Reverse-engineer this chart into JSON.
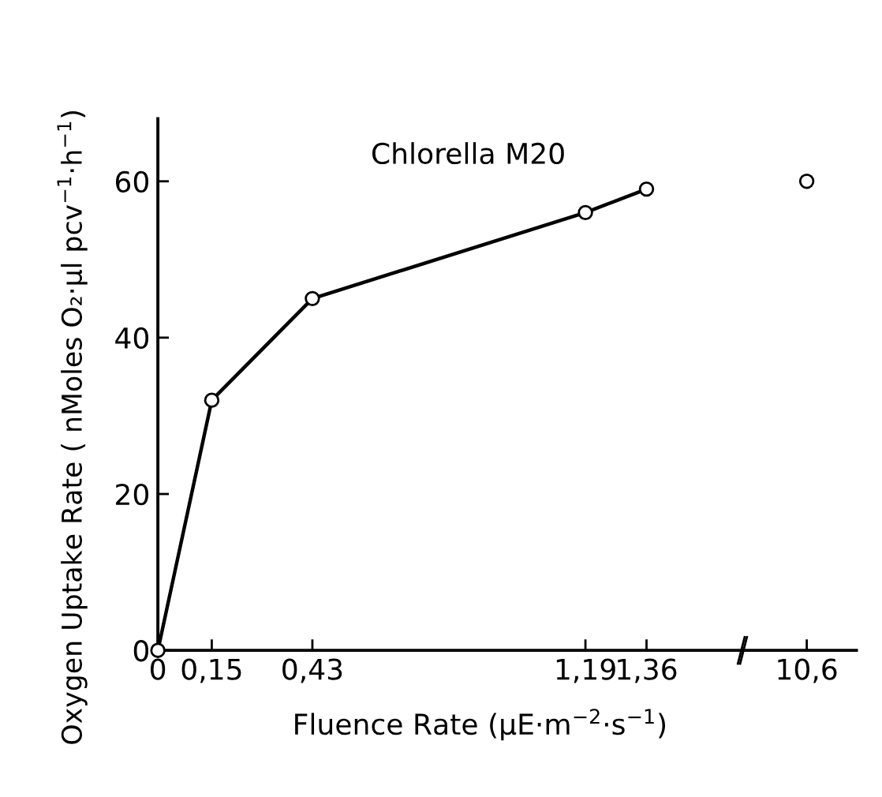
{
  "chart_data": [
    {
      "type": "line",
      "title": "Chlorella M20",
      "xlabel": "Fluence Rate (µE·m$^{−2}$·s$^{−1}$)",
      "ylabel": "Oxygen Uptake Rate ( nMoles O₂·µl pcv$^{−1}$·h$^{−1}$)",
      "x": [
        0,
        0.15,
        0.43,
        1.19,
        1.36
      ],
      "series": [
        {
          "color": "#000000",
          "values": [
            0,
            32,
            45,
            56,
            59
          ]
        }
      ],
      "xlim": [
        0,
        1.63
      ],
      "xticks": [
        0,
        {
          "value": 0.15,
          "label": "0,15"
        },
        {
          "value": 0.43,
          "label": "0,43"
        },
        {
          "value": 1.19,
          "label": "1,19"
        },
        {
          "value": 1.36,
          "label": "1,36"
        }
      ],
      "ylim": [
        0,
        68
      ],
      "yticks": [
        0,
        20,
        40,
        60
      ],
      "grid": false,
      "legend": false,
      "marker": "circle",
      "line_style": "solid"
    },
    {
      "type": "line",
      "categories": [
        "10,6"
      ],
      "series": [
        {
          "color": "#000000",
          "values": [
            60
          ]
        }
      ],
      "ylim": [
        0,
        68
      ],
      "tick_labels": "x",
      "grid": false,
      "legend": false,
      "marker": "circle",
      "line_style": "solid"
    }
  ]
}
